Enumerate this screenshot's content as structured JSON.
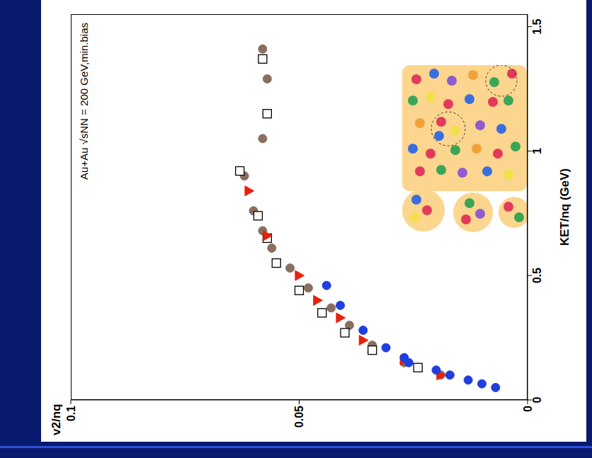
{
  "chart_data": {
    "type": "scatter",
    "title": "Au+Au √sNN = 200 GeV,min.bias",
    "x_label": "KET/nq (GeV)",
    "y_label": "v2/nq",
    "xlim": [
      0,
      1.55
    ],
    "xticks": [
      0,
      0.5,
      1,
      1.5
    ],
    "ylim": [
      0,
      0.1
    ],
    "yticks": [
      0,
      0.05,
      0.1
    ],
    "grid": false,
    "series": [
      {
        "color": "#8a6e5e",
        "marker": "circle",
        "x": [
          1.41,
          1.29,
          1.05,
          0.9,
          0.76,
          0.68,
          0.61,
          0.53,
          0.45,
          0.37,
          0.3,
          0.22,
          0.15,
          0.1
        ],
        "values": [
          0.058,
          0.057,
          0.058,
          0.062,
          0.06,
          0.058,
          0.056,
          0.052,
          0.048,
          0.043,
          0.039,
          0.034,
          0.027,
          0.019
        ]
      },
      {
        "color": "#000000",
        "marker": "square",
        "x": [
          1.37,
          1.15,
          0.92,
          0.74,
          0.65,
          0.55,
          0.44,
          0.35,
          0.27,
          0.2,
          0.13
        ],
        "values": [
          0.058,
          0.057,
          0.063,
          0.059,
          0.057,
          0.055,
          0.05,
          0.045,
          0.04,
          0.034,
          0.024
        ]
      },
      {
        "color": "#e8200c",
        "marker": "triangle",
        "x": [
          0.84,
          0.66,
          0.5,
          0.4,
          0.33,
          0.24,
          0.16,
          0.1
        ],
        "values": [
          0.061,
          0.057,
          0.05,
          0.046,
          0.041,
          0.036,
          0.027,
          0.019
        ]
      },
      {
        "color": "#1f3fe0",
        "marker": "circle",
        "x": [
          0.46,
          0.38,
          0.28,
          0.21,
          0.17,
          0.15,
          0.12,
          0.1,
          0.08,
          0.065,
          0.05
        ],
        "values": [
          0.044,
          0.041,
          0.036,
          0.031,
          0.027,
          0.026,
          0.02,
          0.017,
          0.013,
          0.01,
          0.007
        ]
      }
    ]
  }
}
